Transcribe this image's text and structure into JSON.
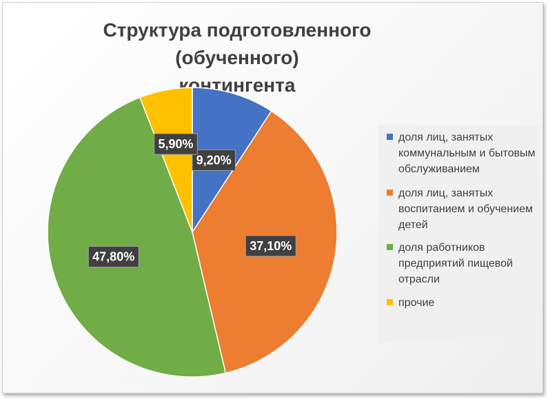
{
  "chart_data": {
    "type": "pie",
    "title_lines": [
      "Структура подготовленного (обученного)",
      "контингента"
    ],
    "categories": [
      "доля лиц, занятых коммунальным и бытовым обслуживанием",
      "доля лиц, занятых воспитанием и обучением детей",
      "доля работников предприятий пищевой отрасли",
      "прочие"
    ],
    "values": [
      9.2,
      37.1,
      47.8,
      5.9
    ],
    "data_labels": [
      "9,20%",
      "37,10%",
      "47,80%",
      "5,90%"
    ],
    "colors": [
      "#4472c4",
      "#ed7d31",
      "#70ad47",
      "#ffc000"
    ],
    "legend_lines": [
      [
        "доля лиц, занятых",
        "коммунальным и бытовым",
        "обслуживанием"
      ],
      [
        "доля лиц, занятых",
        "воспитанием и обучением",
        "детей"
      ],
      [
        "доля работников",
        "предприятий пищевой",
        "отрасли"
      ],
      [
        "прочие"
      ]
    ],
    "legend_position": "right"
  }
}
